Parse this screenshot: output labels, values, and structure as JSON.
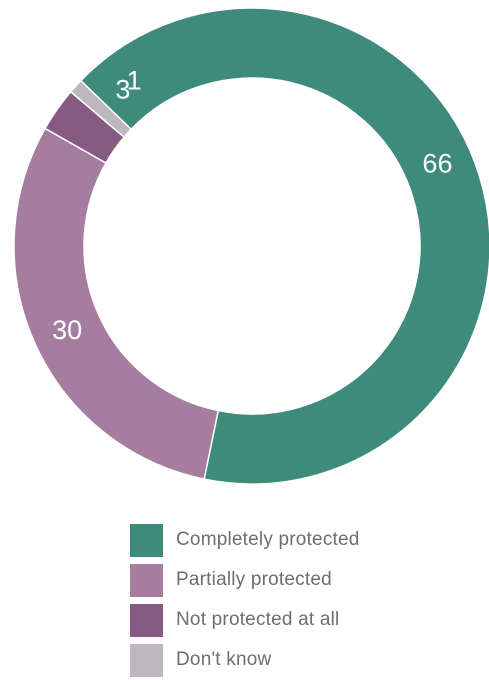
{
  "chart_data": {
    "type": "pie",
    "donut": true,
    "categories": [
      "Completely protected",
      "Partially protected",
      "Not protected at all",
      "Don't know"
    ],
    "values": [
      66,
      30,
      3,
      1
    ],
    "colors": [
      "#3e8b7d",
      "#a57d9e",
      "#865a83",
      "#bdb8bd"
    ],
    "start_angle_deg": -46,
    "legend_position": "bottom"
  }
}
